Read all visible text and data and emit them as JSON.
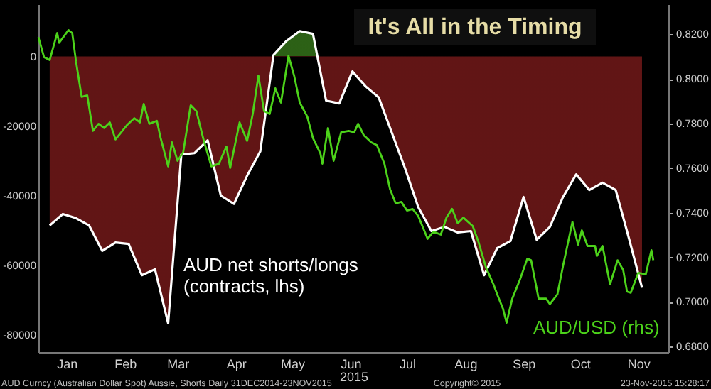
{
  "chart_data": {
    "type": "area",
    "title": "It's All in the Timing",
    "xlabel": "2015",
    "annotations": [
      "AUD Curncy (Australian Dollar Spot) Aussie, Shorts  Daily 31DEC2014-23NOV2015",
      "Copyright© 2015",
      "23-Nov-2015 15:28:17"
    ],
    "xlim": [
      "2014-12-31",
      "2015-12-01"
    ],
    "xticks": [
      {
        "value": "2015-01-15",
        "label": "Jan"
      },
      {
        "value": "2015-02-15",
        "label": "Feb"
      },
      {
        "value": "2015-03-15",
        "label": "Mar"
      },
      {
        "value": "2015-04-15",
        "label": "Apr"
      },
      {
        "value": "2015-05-15",
        "label": "May"
      },
      {
        "value": "2015-06-15",
        "label": "Jun"
      },
      {
        "value": "2015-07-15",
        "label": "Jul"
      },
      {
        "value": "2015-08-15",
        "label": "Aug"
      },
      {
        "value": "2015-09-15",
        "label": "Sep"
      },
      {
        "value": "2015-10-15",
        "label": "Oct"
      },
      {
        "value": "2015-11-15",
        "label": "Nov"
      }
    ],
    "ylim": [
      -85000,
      15000
    ],
    "yticks": [
      -80000,
      -60000,
      -40000,
      -20000,
      0
    ],
    "y2lim": [
      0.6775,
      0.8335
    ],
    "y2ticks": [
      {
        "value": 0.68,
        "label": "0.6800"
      },
      {
        "value": 0.7,
        "label": "0.7000"
      },
      {
        "value": 0.72,
        "label": "0.7200"
      },
      {
        "value": 0.74,
        "label": "0.7400"
      },
      {
        "value": 0.76,
        "label": "0.7600"
      },
      {
        "value": 0.78,
        "label": "0.7800"
      },
      {
        "value": 0.8,
        "label": "0.8000"
      },
      {
        "value": 0.82,
        "label": "0.8200"
      }
    ],
    "grid": false,
    "series": [
      {
        "name": "AUD net shorts/longs\n(contracts, lhs)",
        "color": "#8b1e1e",
        "x": [
          "2015-01-06",
          "2015-01-13",
          "2015-01-20",
          "2015-01-27",
          "2015-02-03",
          "2015-02-10",
          "2015-02-17",
          "2015-02-24",
          "2015-03-03",
          "2015-03-10",
          "2015-03-17",
          "2015-03-24",
          "2015-03-31",
          "2015-04-07",
          "2015-04-14",
          "2015-04-21",
          "2015-04-28",
          "2015-05-05",
          "2015-05-12",
          "2015-05-19",
          "2015-05-26",
          "2015-06-02",
          "2015-06-09",
          "2015-06-16",
          "2015-06-23",
          "2015-06-30",
          "2015-07-07",
          "2015-07-14",
          "2015-07-21",
          "2015-07-28",
          "2015-08-04",
          "2015-08-11",
          "2015-08-18",
          "2015-08-25",
          "2015-09-01",
          "2015-09-08",
          "2015-09-15",
          "2015-09-22",
          "2015-09-29",
          "2015-10-06",
          "2015-10-13",
          "2015-10-20",
          "2015-10-27",
          "2015-11-03",
          "2015-11-10",
          "2015-11-17"
        ],
        "values": [
          -48600,
          -45300,
          -46500,
          -48600,
          -55900,
          -53500,
          -53900,
          -62900,
          -61200,
          -76700,
          -28200,
          -27800,
          -24100,
          -40000,
          -42400,
          -34300,
          -27300,
          400,
          4500,
          7300,
          6500,
          -12700,
          -13500,
          -4300,
          -8600,
          -11800,
          -22000,
          -32200,
          -43300,
          -50200,
          -49000,
          -50600,
          -50200,
          -62900,
          -55100,
          -53100,
          -40400,
          -52700,
          -49000,
          -40400,
          -33900,
          -38400,
          -36300,
          -38400,
          -52200,
          -66500
        ]
      },
      {
        "name": "AUD/USD (rhs)",
        "type": "line",
        "axis": "y2",
        "color": "#4cd21a",
        "x": [
          "2014-12-31",
          "2015-01-03",
          "2015-01-06",
          "2015-01-10",
          "2015-01-11",
          "2015-01-16",
          "2015-01-18",
          "2015-01-20",
          "2015-01-23",
          "2015-01-26",
          "2015-01-29",
          "2015-02-01",
          "2015-02-04",
          "2015-02-07",
          "2015-02-10",
          "2015-02-16",
          "2015-02-20",
          "2015-02-23",
          "2015-02-25",
          "2015-02-28",
          "2015-03-04",
          "2015-03-06",
          "2015-03-10",
          "2015-03-12",
          "2015-03-15",
          "2015-03-18",
          "2015-03-22",
          "2015-03-25",
          "2015-03-29",
          "2015-04-02",
          "2015-04-06",
          "2015-04-10",
          "2015-04-12",
          "2015-04-17",
          "2015-04-21",
          "2015-04-24",
          "2015-04-27",
          "2015-04-30",
          "2015-05-03",
          "2015-05-06",
          "2015-05-09",
          "2015-05-13",
          "2015-05-16",
          "2015-05-19",
          "2015-05-23",
          "2015-05-26",
          "2015-05-30",
          "2015-05-31",
          "2015-06-03",
          "2015-06-06",
          "2015-06-10",
          "2015-06-14",
          "2015-06-17",
          "2015-06-19",
          "2015-06-22",
          "2015-06-26",
          "2015-06-29",
          "2015-07-03",
          "2015-07-06",
          "2015-07-09",
          "2015-07-12",
          "2015-07-15",
          "2015-07-18",
          "2015-07-21",
          "2015-07-26",
          "2015-07-29",
          "2015-08-02",
          "2015-08-05",
          "2015-08-08",
          "2015-08-11",
          "2015-08-14",
          "2015-08-19",
          "2015-08-22",
          "2015-08-26",
          "2015-08-30",
          "2015-09-01",
          "2015-09-04",
          "2015-09-06",
          "2015-09-09",
          "2015-09-13",
          "2015-09-17",
          "2015-09-19",
          "2015-09-23",
          "2015-09-27",
          "2015-09-29",
          "2015-10-03",
          "2015-10-06",
          "2015-10-11",
          "2015-10-14",
          "2015-10-16",
          "2015-10-19",
          "2015-10-23",
          "2015-10-24",
          "2015-10-27",
          "2015-10-31",
          "2015-11-04",
          "2015-11-07",
          "2015-11-09",
          "2015-11-11",
          "2015-11-15",
          "2015-11-19",
          "2015-11-22",
          "2015-11-23"
        ],
        "values": [
          0.8187,
          0.8098,
          0.8085,
          0.8206,
          0.8162,
          0.8219,
          0.8206,
          0.8079,
          0.792,
          0.7926,
          0.7767,
          0.7799,
          0.778,
          0.7805,
          0.7729,
          0.7792,
          0.7824,
          0.7805,
          0.7888,
          0.7799,
          0.7812,
          0.7735,
          0.7608,
          0.7716,
          0.7633,
          0.7671,
          0.7882,
          0.7856,
          0.7722,
          0.7608,
          0.762,
          0.7697,
          0.7601,
          0.7805,
          0.7722,
          0.7843,
          0.8015,
          0.7856,
          0.7843,
          0.7958,
          0.7894,
          0.8104,
          0.8015,
          0.7894,
          0.7831,
          0.7735,
          0.7665,
          0.762,
          0.778,
          0.7633,
          0.7761,
          0.7767,
          0.7761,
          0.7799,
          0.7748,
          0.7716,
          0.7703,
          0.762,
          0.7506,
          0.7442,
          0.7449,
          0.741,
          0.7417,
          0.7385,
          0.7283,
          0.7315,
          0.7302,
          0.7378,
          0.7417,
          0.7353,
          0.7378,
          0.734,
          0.727,
          0.7155,
          0.7079,
          0.7034,
          0.6971,
          0.6907,
          0.7015,
          0.7098,
          0.7194,
          0.7187,
          0.7015,
          0.7015,
          0.699,
          0.7034,
          0.7162,
          0.7359,
          0.7257,
          0.7321,
          0.7251,
          0.7251,
          0.7206,
          0.7251,
          0.7079,
          0.7187,
          0.7143,
          0.7047,
          0.7041,
          0.713,
          0.7124,
          0.7232,
          0.7187
        ]
      }
    ]
  }
}
